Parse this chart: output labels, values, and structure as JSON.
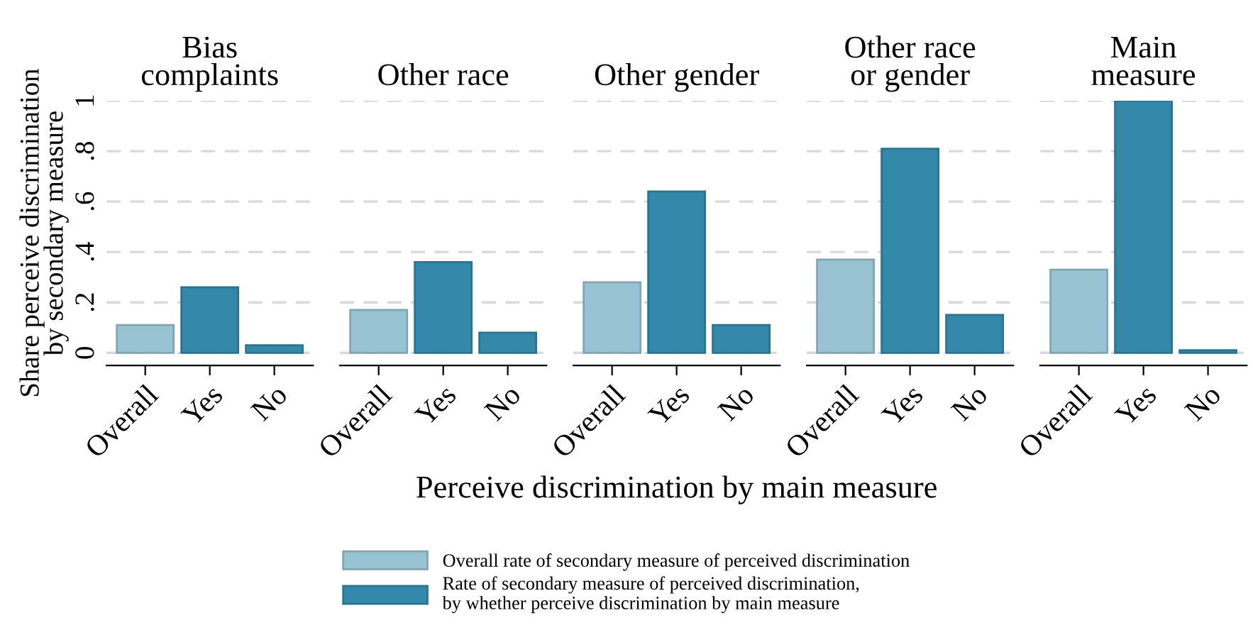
{
  "chart_data": [
    {
      "type": "bar",
      "title": "Bias\ncomplaints",
      "ylabel": "Share perceive discrimination\nby secondary measure",
      "categories": [
        "Overall",
        "Yes",
        "No"
      ],
      "ylim": [
        -0.05,
        1
      ],
      "yticks": [
        0,
        {
          "value": 0.2,
          "label": ".2"
        },
        {
          "value": 0.4,
          "label": ".4"
        },
        {
          "value": 0.6,
          "label": ".6"
        },
        {
          "value": 0.8,
          "label": ".8"
        },
        1
      ],
      "grid": "y",
      "legend": "bottom",
      "series": [
        {
          "name": "Overall rate of secondary measure of perceived discrimination",
          "color": "#99c2d3",
          "values": [
            0.11,
            null,
            null
          ]
        },
        {
          "name": "Rate of secondary measure of perceived discrimination,\nby whether perceive discrimination by main measure",
          "color": "#3388aa",
          "values": [
            null,
            0.26,
            0.03
          ]
        }
      ]
    },
    {
      "type": "bar",
      "title": "Other race",
      "categories": [
        "Overall",
        "Yes",
        "No"
      ],
      "ylim": [
        -0.05,
        1
      ],
      "grid": "y",
      "tick_labels": "x",
      "series": [
        {
          "color": "#99c2d3",
          "values": [
            0.17,
            null,
            null
          ]
        },
        {
          "color": "#3388aa",
          "values": [
            null,
            0.36,
            0.08
          ]
        }
      ]
    },
    {
      "type": "bar",
      "title": "Other gender",
      "xlabel": "Perceive discrimination by main measure",
      "categories": [
        "Overall",
        "Yes",
        "No"
      ],
      "ylim": [
        -0.05,
        1
      ],
      "grid": "y",
      "tick_labels": "x",
      "series": [
        {
          "color": "#99c2d3",
          "values": [
            0.28,
            null,
            null
          ]
        },
        {
          "color": "#3388aa",
          "values": [
            null,
            0.64,
            0.11
          ]
        }
      ]
    },
    {
      "type": "bar",
      "title": "Other race\nor gender",
      "categories": [
        "Overall",
        "Yes",
        "No"
      ],
      "ylim": [
        -0.05,
        1
      ],
      "grid": "y",
      "tick_labels": "x",
      "series": [
        {
          "color": "#99c2d3",
          "values": [
            0.37,
            null,
            null
          ]
        },
        {
          "color": "#3388aa",
          "values": [
            null,
            0.81,
            0.15
          ]
        }
      ]
    },
    {
      "type": "bar",
      "title": "Main\nmeasure",
      "categories": [
        "Overall",
        "Yes",
        "No"
      ],
      "ylim": [
        -0.05,
        1
      ],
      "grid": "y",
      "tick_labels": "x",
      "series": [
        {
          "color": "#99c2d3",
          "values": [
            0.33,
            null,
            null
          ]
        },
        {
          "color": "#3388aa",
          "values": [
            null,
            1.0,
            0.01
          ]
        }
      ]
    }
  ]
}
